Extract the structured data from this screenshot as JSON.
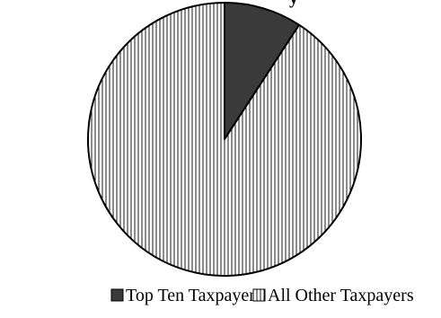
{
  "chart_data": {
    "type": "pie",
    "title": "",
    "title_fragment": "y",
    "slices": [
      {
        "label": "Top Ten Taxpayers",
        "value": 9.2,
        "color": "#3a3a3a",
        "fill_style": "solid"
      },
      {
        "label": "All Other Taxpayers",
        "value": 90.8,
        "color": "#ffffff",
        "fill_style": "vertical-lines"
      }
    ],
    "start_angle_deg": 0,
    "direction": "clockwise",
    "legend_position": "bottom"
  }
}
